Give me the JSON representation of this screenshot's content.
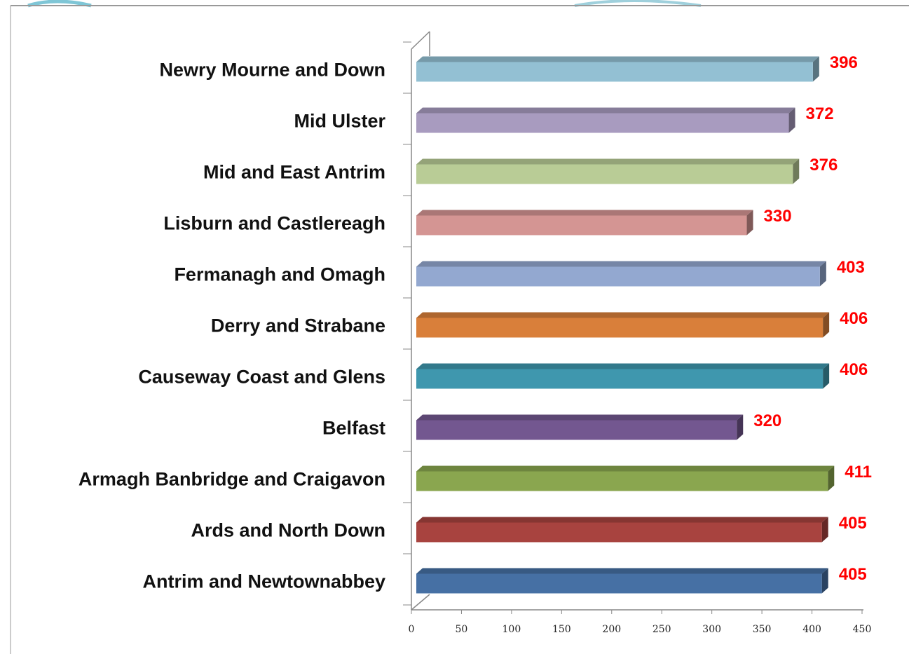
{
  "chart_data": {
    "type": "bar",
    "orientation": "horizontal",
    "categories": [
      "Newry Mourne and Down",
      "Mid Ulster",
      "Mid and East Antrim",
      "Lisburn and Castlereagh",
      "Fermanagh and Omagh",
      "Derry and Strabane",
      "Causeway Coast and Glens",
      "Belfast",
      "Armagh Banbridge and Craigavon",
      "Ards and North Down",
      "Antrim and Newtownabbey"
    ],
    "values": [
      396,
      372,
      376,
      330,
      403,
      406,
      406,
      320,
      411,
      405,
      405
    ],
    "colors": [
      "#93c0d3",
      "#a89bbf",
      "#b9cc96",
      "#d49593",
      "#93a8d0",
      "#d97f3a",
      "#3f97ae",
      "#735790",
      "#8aa64f",
      "#a8433f",
      "#4670a4"
    ],
    "xlim": [
      0,
      450
    ],
    "xticks": [
      0,
      50,
      100,
      150,
      200,
      250,
      300,
      350,
      400,
      450
    ]
  }
}
